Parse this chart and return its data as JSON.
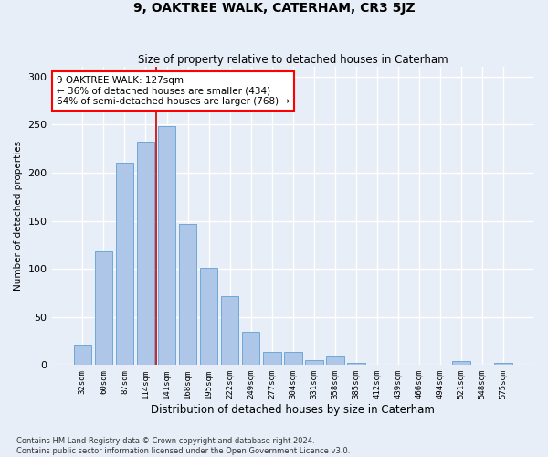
{
  "title": "9, OAKTREE WALK, CATERHAM, CR3 5JZ",
  "subtitle": "Size of property relative to detached houses in Caterham",
  "xlabel": "Distribution of detached houses by size in Caterham",
  "ylabel": "Number of detached properties",
  "categories": [
    "32sqm",
    "60sqm",
    "87sqm",
    "114sqm",
    "141sqm",
    "168sqm",
    "195sqm",
    "222sqm",
    "249sqm",
    "277sqm",
    "304sqm",
    "331sqm",
    "358sqm",
    "385sqm",
    "412sqm",
    "439sqm",
    "466sqm",
    "494sqm",
    "521sqm",
    "548sqm",
    "575sqm"
  ],
  "values": [
    20,
    118,
    210,
    232,
    248,
    147,
    101,
    72,
    35,
    14,
    14,
    5,
    9,
    2,
    0,
    0,
    0,
    0,
    4,
    0,
    2
  ],
  "bar_color": "#aec6e8",
  "bar_edgecolor": "#6fa8d6",
  "property_label": "9 OAKTREE WALK: 127sqm",
  "annotation_line1": "← 36% of detached houses are smaller (434)",
  "annotation_line2": "64% of semi-detached houses are larger (768) →",
  "vline_color": "#cc0000",
  "vline_position": 3.5,
  "ylim": [
    0,
    310
  ],
  "yticks": [
    0,
    50,
    100,
    150,
    200,
    250,
    300
  ],
  "background_color": "#e8eef7",
  "plot_background": "#e8eef7",
  "grid_color": "#ffffff",
  "footer_line1": "Contains HM Land Registry data © Crown copyright and database right 2024.",
  "footer_line2": "Contains public sector information licensed under the Open Government Licence v3.0."
}
